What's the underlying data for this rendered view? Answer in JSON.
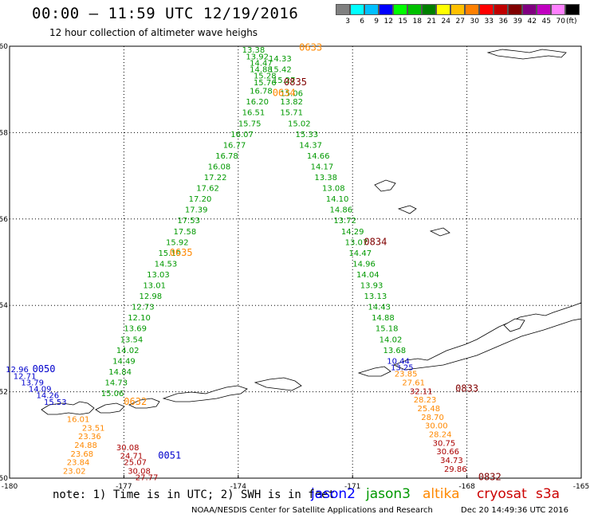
{
  "header": {
    "title": "00:00 – 11:59 UTC 12/19/2016",
    "subtitle": "12 hour collection of altimeter wave heighs"
  },
  "legend": {
    "colors": [
      "#808080",
      "#00ffff",
      "#00c0ff",
      "#0000ff",
      "#00ff00",
      "#00c000",
      "#008000",
      "#ffff00",
      "#ffc000",
      "#ff8000",
      "#ff0000",
      "#c00000",
      "#800000",
      "#800080",
      "#c000c0",
      "#ff80ff",
      "#000000"
    ],
    "labels": [
      "3",
      "6",
      "9",
      "12",
      "15",
      "18",
      "21",
      "24",
      "27",
      "30",
      "33",
      "36",
      "39",
      "42",
      "45",
      "70"
    ],
    "unit": "(ft)"
  },
  "axes": {
    "lon_ticks": [
      "-180",
      "-177",
      "-174",
      "-171",
      "-168",
      "-165"
    ],
    "lat_ticks": [
      "60",
      "58",
      "56",
      "54",
      "52",
      "50"
    ]
  },
  "chart_data": {
    "type": "scatter",
    "title": "00:00 – 11:59 UTC 12/19/2016",
    "xlabel": "",
    "ylabel": "",
    "xlim": [
      -180,
      -165
    ],
    "ylim": [
      50,
      60
    ],
    "x_ticks": [
      -180,
      -177,
      -174,
      -171,
      -168,
      -165
    ],
    "y_ticks": [
      60,
      58,
      56,
      54,
      52,
      50
    ],
    "grid": true,
    "series": [
      {
        "name": "jason3",
        "color": "#009900",
        "pass_time": "0635",
        "points": [
          {
            "lon": -173.6,
            "lat": 59.85,
            "v": "13.38"
          },
          {
            "lon": -173.5,
            "lat": 59.7,
            "v": "13.92"
          },
          {
            "lon": -173.4,
            "lat": 59.55,
            "v": "14.47"
          },
          {
            "lon": -173.4,
            "lat": 59.4,
            "v": "14.88"
          },
          {
            "lon": -173.3,
            "lat": 59.25,
            "v": "15.28"
          },
          {
            "lon": -173.3,
            "lat": 59.1,
            "v": "15.76"
          },
          {
            "lon": -173.4,
            "lat": 58.9,
            "v": "16.78"
          },
          {
            "lon": -173.5,
            "lat": 58.65,
            "v": "16.20"
          },
          {
            "lon": -173.6,
            "lat": 58.4,
            "v": "16.51"
          },
          {
            "lon": -173.7,
            "lat": 58.15,
            "v": "15.75"
          },
          {
            "lon": -173.9,
            "lat": 57.9,
            "v": "16.07"
          },
          {
            "lon": -174.1,
            "lat": 57.65,
            "v": "16.77"
          },
          {
            "lon": -174.3,
            "lat": 57.4,
            "v": "16.78"
          },
          {
            "lon": -174.5,
            "lat": 57.15,
            "v": "16.08"
          },
          {
            "lon": -174.6,
            "lat": 56.9,
            "v": "17.22"
          },
          {
            "lon": -174.8,
            "lat": 56.65,
            "v": "17.62"
          },
          {
            "lon": -175.0,
            "lat": 56.4,
            "v": "17.20"
          },
          {
            "lon": -175.1,
            "lat": 56.15,
            "v": "17.39"
          },
          {
            "lon": -175.3,
            "lat": 55.9,
            "v": "17.53"
          },
          {
            "lon": -175.4,
            "lat": 55.65,
            "v": "17.58"
          },
          {
            "lon": -175.6,
            "lat": 55.4,
            "v": "15.92"
          },
          {
            "lon": -175.8,
            "lat": 55.15,
            "v": "15.19"
          },
          {
            "lon": -175.9,
            "lat": 54.9,
            "v": "14.53"
          },
          {
            "lon": -176.1,
            "lat": 54.65,
            "v": "13.03"
          },
          {
            "lon": -176.2,
            "lat": 54.4,
            "v": "13.01"
          },
          {
            "lon": -176.3,
            "lat": 54.15,
            "v": "12.98"
          },
          {
            "lon": -176.5,
            "lat": 53.9,
            "v": "12.73"
          },
          {
            "lon": -176.6,
            "lat": 53.65,
            "v": "12.10"
          },
          {
            "lon": -176.7,
            "lat": 53.4,
            "v": "13.69"
          },
          {
            "lon": -176.8,
            "lat": 53.15,
            "v": "13.54"
          },
          {
            "lon": -176.9,
            "lat": 52.9,
            "v": "14.02"
          },
          {
            "lon": -177.0,
            "lat": 52.65,
            "v": "14.49"
          },
          {
            "lon": -177.1,
            "lat": 52.4,
            "v": "14.84"
          },
          {
            "lon": -177.2,
            "lat": 52.15,
            "v": "14.73"
          },
          {
            "lon": -177.3,
            "lat": 51.9,
            "v": "15.06"
          }
        ]
      },
      {
        "name": "jason3",
        "color": "#009900",
        "pass_time": "0834",
        "points": [
          {
            "lon": -172.9,
            "lat": 59.65,
            "v": "14.33"
          },
          {
            "lon": -172.9,
            "lat": 59.4,
            "v": "15.42"
          },
          {
            "lon": -172.8,
            "lat": 59.15,
            "v": "15.27"
          },
          {
            "lon": -172.6,
            "lat": 58.85,
            "v": "15.06"
          },
          {
            "lon": -172.6,
            "lat": 58.65,
            "v": "13.82"
          },
          {
            "lon": -172.6,
            "lat": 58.4,
            "v": "15.71"
          },
          {
            "lon": -172.4,
            "lat": 58.15,
            "v": "15.02"
          },
          {
            "lon": -172.2,
            "lat": 57.9,
            "v": "15.33"
          },
          {
            "lon": -172.1,
            "lat": 57.65,
            "v": "14.37"
          },
          {
            "lon": -171.9,
            "lat": 57.4,
            "v": "14.66"
          },
          {
            "lon": -171.8,
            "lat": 57.15,
            "v": "14.17"
          },
          {
            "lon": -171.7,
            "lat": 56.9,
            "v": "13.38"
          },
          {
            "lon": -171.5,
            "lat": 56.65,
            "v": "13.08"
          },
          {
            "lon": -171.4,
            "lat": 56.4,
            "v": "14.10"
          },
          {
            "lon": -171.3,
            "lat": 56.15,
            "v": "14.86"
          },
          {
            "lon": -171.2,
            "lat": 55.9,
            "v": "13.72"
          },
          {
            "lon": -171.0,
            "lat": 55.65,
            "v": "14.29"
          },
          {
            "lon": -170.9,
            "lat": 55.4,
            "v": "13.07"
          },
          {
            "lon": -170.8,
            "lat": 55.15,
            "v": "14.47"
          },
          {
            "lon": -170.7,
            "lat": 54.9,
            "v": "14.96"
          },
          {
            "lon": -170.6,
            "lat": 54.65,
            "v": "14.04"
          },
          {
            "lon": -170.5,
            "lat": 54.4,
            "v": "13.93"
          },
          {
            "lon": -170.4,
            "lat": 54.15,
            "v": "13.13"
          },
          {
            "lon": -170.3,
            "lat": 53.9,
            "v": "14.43"
          },
          {
            "lon": -170.2,
            "lat": 53.65,
            "v": "14.88"
          },
          {
            "lon": -170.1,
            "lat": 53.4,
            "v": "15.18"
          },
          {
            "lon": -170.0,
            "lat": 53.15,
            "v": "14.02"
          },
          {
            "lon": -169.9,
            "lat": 52.9,
            "v": "13.68"
          }
        ]
      },
      {
        "name": "jason2",
        "color": "#0000cc",
        "pass_time": "0050",
        "points": [
          {
            "lon": -179.8,
            "lat": 52.45,
            "v": "12.96"
          },
          {
            "lon": -179.6,
            "lat": 52.3,
            "v": "12.71"
          },
          {
            "lon": -179.4,
            "lat": 52.15,
            "v": "13.79"
          },
          {
            "lon": -179.2,
            "lat": 52.0,
            "v": "14.09"
          },
          {
            "lon": -179.0,
            "lat": 51.85,
            "v": "14.26"
          },
          {
            "lon": -178.8,
            "lat": 51.7,
            "v": "15.53"
          },
          {
            "lon": -169.8,
            "lat": 52.65,
            "v": "10.44"
          },
          {
            "lon": -169.7,
            "lat": 52.5,
            "v": "13.25"
          }
        ]
      },
      {
        "name": "altika",
        "color": "#ff8800",
        "pass_time": "0633",
        "points": [
          {
            "lon": -178.2,
            "lat": 51.3,
            "v": "16.01"
          },
          {
            "lon": -177.8,
            "lat": 51.1,
            "v": "23.51"
          },
          {
            "lon": -177.9,
            "lat": 50.9,
            "v": "23.36"
          },
          {
            "lon": -178.0,
            "lat": 50.7,
            "v": "24.88"
          },
          {
            "lon": -178.1,
            "lat": 50.5,
            "v": "23.68"
          },
          {
            "lon": -178.2,
            "lat": 50.3,
            "v": "23.84"
          },
          {
            "lon": -178.3,
            "lat": 50.1,
            "v": "23.02"
          },
          {
            "lon": -169.6,
            "lat": 52.35,
            "v": "23.85"
          },
          {
            "lon": -169.4,
            "lat": 52.15,
            "v": "27.61"
          },
          {
            "lon": -169.1,
            "lat": 51.75,
            "v": "28.23"
          },
          {
            "lon": -169.0,
            "lat": 51.55,
            "v": "25.48"
          },
          {
            "lon": -168.9,
            "lat": 51.35,
            "v": "28.70"
          },
          {
            "lon": -168.8,
            "lat": 51.15,
            "v": "30.00"
          },
          {
            "lon": -168.7,
            "lat": 50.95,
            "v": "28.24"
          }
        ]
      },
      {
        "name": "cryosat",
        "color": "#aa0000",
        "pass_time": "0833",
        "points": [
          {
            "lon": -176.9,
            "lat": 50.65,
            "v": "30.08"
          },
          {
            "lon": -176.8,
            "lat": 50.45,
            "v": "24.71"
          },
          {
            "lon": -176.7,
            "lat": 50.3,
            "v": "25.07"
          },
          {
            "lon": -176.6,
            "lat": 50.1,
            "v": "30.08"
          },
          {
            "lon": -176.4,
            "lat": 49.95,
            "v": "27.77"
          },
          {
            "lon": -169.2,
            "lat": 51.95,
            "v": "32.11"
          },
          {
            "lon": -168.6,
            "lat": 50.75,
            "v": "30.75"
          },
          {
            "lon": -168.5,
            "lat": 50.55,
            "v": "30.66"
          },
          {
            "lon": -168.4,
            "lat": 50.35,
            "v": "34.73"
          },
          {
            "lon": -168.3,
            "lat": 50.15,
            "v": "29.86"
          }
        ]
      }
    ],
    "pass_labels": [
      {
        "text": "0633",
        "lon": -172.1,
        "lat": 59.9,
        "color": "#ff8800"
      },
      {
        "text": "0835",
        "lon": -172.5,
        "lat": 59.1,
        "color": "#800000"
      },
      {
        "text": "0634",
        "lon": -172.8,
        "lat": 58.85,
        "color": "#ff8800"
      },
      {
        "text": "0834",
        "lon": -170.4,
        "lat": 55.4,
        "color": "#800000"
      },
      {
        "text": "0635",
        "lon": -175.5,
        "lat": 55.15,
        "color": "#ff8800"
      },
      {
        "text": "0833",
        "lon": -168.0,
        "lat": 52.0,
        "color": "#800000"
      },
      {
        "text": "0050",
        "lon": -179.1,
        "lat": 52.45,
        "color": "#0000cc"
      },
      {
        "text": "0051",
        "lon": -175.8,
        "lat": 50.45,
        "color": "#0000cc"
      },
      {
        "text": "0632",
        "lon": -176.7,
        "lat": 51.7,
        "color": "#ff8800"
      },
      {
        "text": "0832",
        "lon": -167.4,
        "lat": 49.95,
        "color": "#800000"
      }
    ]
  },
  "note": "note: 1) Time is in UTC; 2) SWH is in feet",
  "satellites": [
    {
      "label": "jason2",
      "color": "#0000ff"
    },
    {
      "label": "jason3",
      "color": "#009900"
    },
    {
      "label": "altika",
      "color": "#ff8800"
    },
    {
      "label": "cryosat",
      "color": "#cc0000"
    },
    {
      "label": "s3a",
      "color": "#cc0000"
    }
  ],
  "footer": {
    "credit": "NOAA/NESDIS Center for Satellite Applications and Research",
    "timestamp": "Dec 20 14:49:36 UTC 2016"
  }
}
